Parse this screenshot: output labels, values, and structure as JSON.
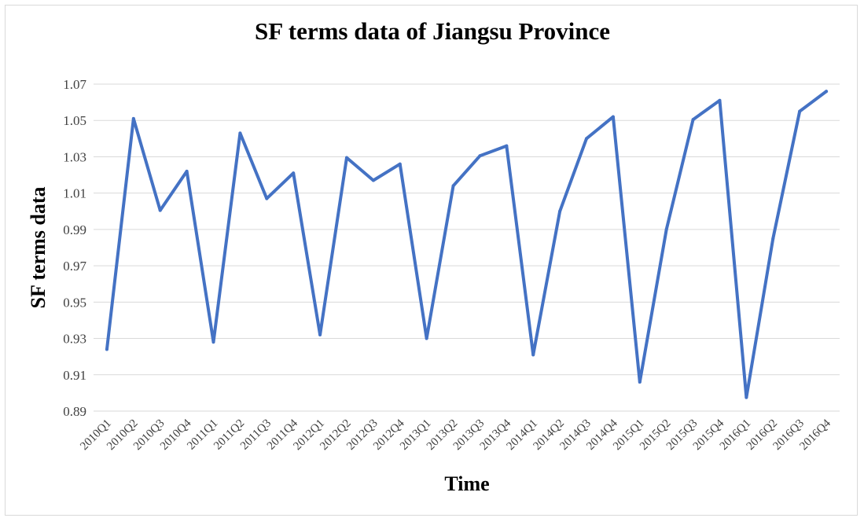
{
  "chart_data": {
    "type": "line",
    "title": "SF terms data of Jiangsu Province",
    "xlabel": "Time",
    "ylabel": "SF terms data",
    "ylim": [
      0.89,
      1.07
    ],
    "yticks": [
      "0.89",
      "0.91",
      "0.93",
      "0.95",
      "0.97",
      "0.99",
      "1.01",
      "1.03",
      "1.05",
      "1.07"
    ],
    "grid": true,
    "line_color": "#4472C4",
    "categories": [
      "2010Q1",
      "2010Q2",
      "2010Q3",
      "2010Q4",
      "2011Q1",
      "2011Q2",
      "2011Q3",
      "2011Q4",
      "2012Q1",
      "2012Q2",
      "2012Q3",
      "2012Q4",
      "2013Q1",
      "2013Q2",
      "2013Q3",
      "2013Q4",
      "2014Q1",
      "2014Q2",
      "2014Q3",
      "2014Q4",
      "2015Q1",
      "2015Q2",
      "2015Q3",
      "2015Q4",
      "2016Q1",
      "2016Q2",
      "2016Q3",
      "2016Q4"
    ],
    "series": [
      {
        "values": [
          0.924,
          1.051,
          1.0005,
          1.022,
          0.928,
          1.043,
          1.007,
          1.021,
          0.932,
          1.0295,
          1.017,
          1.026,
          0.93,
          1.014,
          1.0305,
          1.036,
          0.921,
          1.0,
          1.04,
          1.052,
          0.906,
          0.99,
          1.0505,
          1.061,
          0.8975,
          0.985,
          1.055,
          1.066
        ]
      }
    ]
  }
}
